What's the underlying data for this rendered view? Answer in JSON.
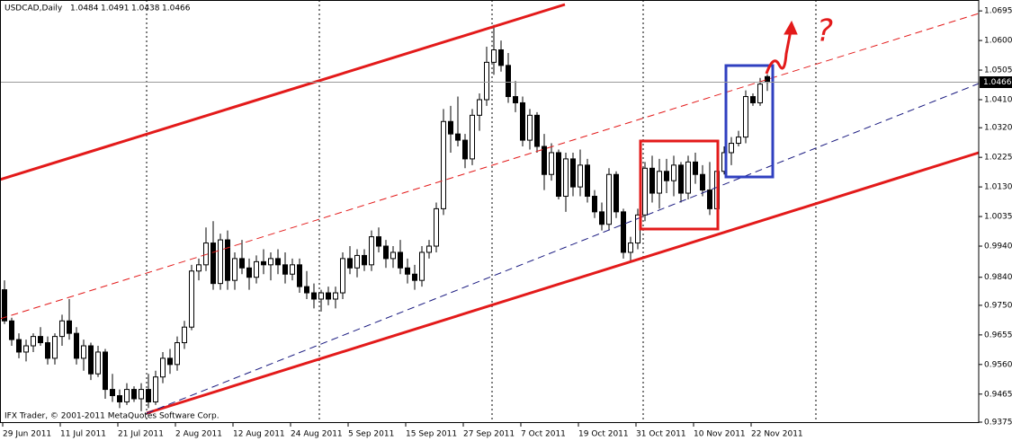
{
  "chart_data": {
    "type": "candlestick",
    "title": "USDCAD,Daily",
    "footer": "IFX Trader, © 2001-2011 MetaQuotes Software Corp.",
    "annotations": [
      "?"
    ],
    "categories": [
      "29 Jun 2011",
      null,
      null,
      null,
      null,
      null,
      null,
      null,
      "11 Jul 2011",
      null,
      null,
      null,
      null,
      null,
      null,
      null,
      "21 Jul 2011",
      null,
      null,
      null,
      null,
      null,
      null,
      null,
      "2 Aug 2011",
      null,
      null,
      null,
      null,
      null,
      null,
      null,
      "12 Aug 2011",
      null,
      null,
      null,
      null,
      null,
      null,
      null,
      "24 Aug 2011",
      null,
      null,
      null,
      null,
      null,
      null,
      null,
      "5 Sep 2011",
      null,
      null,
      null,
      null,
      null,
      null,
      null,
      "15 Sep 2011",
      null,
      null,
      null,
      null,
      null,
      null,
      null,
      "27 Sep 2011",
      null,
      null,
      null,
      null,
      null,
      null,
      null,
      "7 Oct 2011",
      null,
      null,
      null,
      null,
      null,
      null,
      null,
      "19 Oct 2011",
      null,
      null,
      null,
      null,
      null,
      null,
      null,
      "31 Oct 2011",
      null,
      null,
      null,
      null,
      null,
      null,
      null,
      "10 Nov 2011",
      null,
      null,
      null,
      null,
      null,
      null,
      null,
      "22 Nov 2011",
      null,
      null
    ],
    "open": [
      0.98,
      0.97,
      0.964,
      0.96,
      0.962,
      0.965,
      0.963,
      0.958,
      0.965,
      0.97,
      0.966,
      0.958,
      0.962,
      0.953,
      0.96,
      0.948,
      0.946,
      0.944,
      0.948,
      0.945,
      0.948,
      0.944,
      0.952,
      0.958,
      0.956,
      0.963,
      0.968,
      0.986,
      0.988,
      0.995,
      0.982,
      0.996,
      0.983,
      0.99,
      0.987,
      0.984,
      0.989,
      0.988,
      0.99,
      0.988,
      0.985,
      0.988,
      0.981,
      0.979,
      0.977,
      0.979,
      0.977,
      0.979,
      0.99,
      0.987,
      0.991,
      0.988,
      0.997,
      0.994,
      0.99,
      0.992,
      0.987,
      0.985,
      0.983,
      0.992,
      0.994,
      1.006,
      1.034,
      1.03,
      1.028,
      1.022,
      1.036,
      1.041,
      1.053,
      1.057,
      1.052,
      1.042,
      1.04,
      1.028,
      1.036,
      1.026,
      1.017,
      1.024,
      1.01,
      1.022,
      1.013,
      1.02,
      1.01,
      1.005,
      1.001,
      1.017,
      1.005,
      0.992,
      0.995,
      1.004,
      1.019,
      1.011,
      1.018,
      1.015,
      1.02,
      1.011,
      1.021,
      1.017,
      1.012,
      1.006,
      1.018,
      1.024,
      1.027,
      1.029,
      1.042,
      1.04,
      1.0484
    ],
    "high": [
      0.983,
      0.971,
      0.966,
      0.964,
      0.966,
      0.968,
      0.965,
      0.966,
      0.972,
      0.977,
      0.968,
      0.964,
      0.963,
      0.962,
      0.961,
      0.953,
      0.948,
      0.95,
      0.949,
      0.95,
      0.953,
      0.954,
      0.96,
      0.961,
      0.965,
      0.97,
      0.988,
      0.99,
      1.0,
      1.002,
      0.998,
      0.999,
      0.992,
      0.996,
      0.99,
      0.991,
      0.993,
      0.992,
      0.993,
      0.992,
      0.99,
      0.99,
      0.986,
      0.982,
      0.98,
      0.981,
      0.981,
      0.992,
      0.994,
      0.993,
      0.993,
      0.999,
      1.0,
      0.996,
      0.994,
      0.996,
      0.99,
      0.988,
      0.994,
      0.996,
      1.008,
      1.038,
      1.039,
      1.042,
      1.03,
      1.038,
      1.043,
      1.058,
      1.065,
      1.06,
      1.056,
      1.047,
      1.042,
      1.038,
      1.037,
      1.03,
      1.027,
      1.025,
      1.024,
      1.024,
      1.025,
      1.022,
      1.012,
      1.008,
      1.019,
      1.018,
      1.006,
      0.997,
      1.006,
      1.021,
      1.023,
      1.022,
      1.022,
      1.023,
      1.021,
      1.023,
      1.024,
      1.02,
      1.021,
      1.02,
      1.026,
      1.029,
      1.031,
      1.044,
      1.043,
      1.048,
      1.0491
    ],
    "low": [
      0.969,
      0.962,
      0.958,
      0.957,
      0.96,
      0.962,
      0.956,
      0.956,
      0.962,
      0.964,
      0.956,
      0.954,
      0.951,
      0.952,
      0.945,
      0.944,
      0.942,
      0.943,
      0.944,
      0.941,
      0.942,
      0.943,
      0.95,
      0.953,
      0.954,
      0.961,
      0.967,
      0.983,
      0.986,
      0.98,
      0.98,
      0.98,
      0.98,
      0.985,
      0.98,
      0.982,
      0.985,
      0.983,
      0.985,
      0.982,
      0.983,
      0.979,
      0.977,
      0.974,
      0.973,
      0.975,
      0.974,
      0.977,
      0.985,
      0.984,
      0.986,
      0.986,
      0.992,
      0.987,
      0.987,
      0.985,
      0.982,
      0.98,
      0.981,
      0.99,
      0.992,
      1.004,
      1.024,
      1.026,
      1.019,
      1.02,
      1.031,
      1.039,
      1.049,
      1.05,
      1.04,
      1.037,
      1.026,
      1.025,
      1.024,
      1.012,
      1.015,
      1.009,
      1.005,
      1.01,
      1.01,
      1.008,
      1.003,
      0.999,
      0.999,
      1.003,
      0.99,
      0.989,
      0.993,
      1.002,
      1.008,
      1.006,
      1.011,
      1.01,
      1.008,
      1.009,
      1.014,
      1.01,
      1.004,
      1.004,
      1.017,
      1.02,
      1.026,
      1.027,
      1.039,
      1.039,
      1.0438
    ],
    "close": [
      0.97,
      0.964,
      0.96,
      0.962,
      0.965,
      0.963,
      0.958,
      0.965,
      0.97,
      0.966,
      0.958,
      0.962,
      0.953,
      0.96,
      0.948,
      0.946,
      0.944,
      0.948,
      0.945,
      0.948,
      0.944,
      0.952,
      0.958,
      0.956,
      0.963,
      0.968,
      0.986,
      0.988,
      0.995,
      0.982,
      0.996,
      0.983,
      0.99,
      0.987,
      0.984,
      0.989,
      0.988,
      0.99,
      0.988,
      0.985,
      0.988,
      0.981,
      0.979,
      0.977,
      0.979,
      0.977,
      0.979,
      0.99,
      0.987,
      0.991,
      0.988,
      0.997,
      0.994,
      0.99,
      0.992,
      0.987,
      0.985,
      0.983,
      0.992,
      0.994,
      1.006,
      1.034,
      1.03,
      1.028,
      1.022,
      1.036,
      1.041,
      1.053,
      1.057,
      1.052,
      1.042,
      1.04,
      1.028,
      1.036,
      1.026,
      1.017,
      1.024,
      1.01,
      1.022,
      1.013,
      1.02,
      1.01,
      1.005,
      1.001,
      1.017,
      1.005,
      0.992,
      0.995,
      1.004,
      1.019,
      1.011,
      1.018,
      1.015,
      1.02,
      1.011,
      1.021,
      1.017,
      1.012,
      1.006,
      1.018,
      1.024,
      1.027,
      1.029,
      1.042,
      1.04,
      1.046,
      1.0466
    ],
    "ylim": [
      0.9375,
      1.073
    ],
    "yticks": [
      1.0695,
      {
        "value": 1.06,
        "label": "1.0600"
      },
      1.0505,
      {
        "value": 1.041,
        "label": "1.0410"
      },
      {
        "value": 1.032,
        "label": "1.0320"
      },
      1.0225,
      {
        "value": 1.013,
        "label": "1.0130"
      },
      1.0035,
      {
        "value": 0.994,
        "label": "0.9940"
      },
      {
        "value": 0.984,
        "label": "0.9840"
      },
      {
        "value": 0.975,
        "label": "0.9750"
      },
      0.9655,
      {
        "value": 0.956,
        "label": "0.9560"
      },
      0.9465,
      0.9375
    ],
    "bull_color": "#ffffff",
    "bear_color": "#000000",
    "grid": false
  }
}
